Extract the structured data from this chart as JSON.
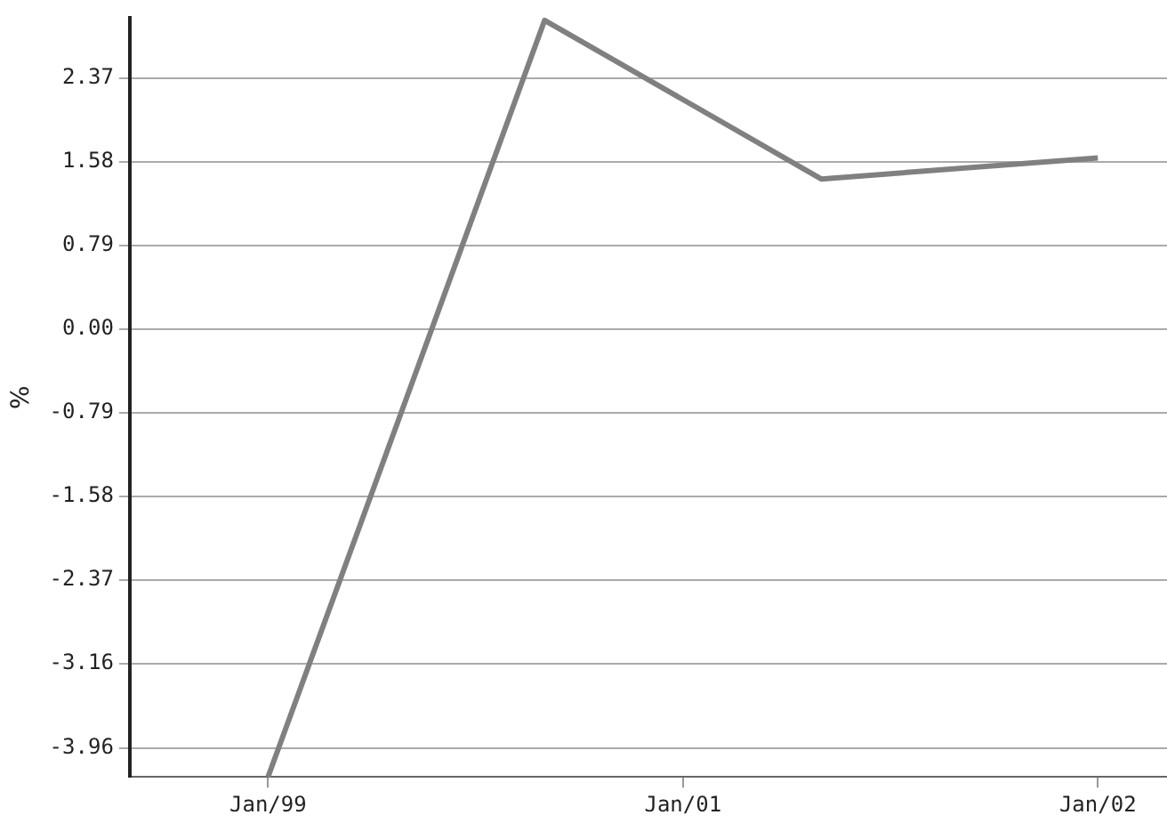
{
  "chart_data": {
    "type": "line",
    "ylabel": "%",
    "categories": [
      null,
      null,
      "Jan/99",
      null,
      null,
      null,
      null,
      null,
      "Jan/01",
      null,
      null,
      null,
      null,
      null,
      "Jan/02",
      null
    ],
    "series": [
      {
        "color": "#808080",
        "values": [
          null,
          null,
          -4.23,
          null,
          null,
          null,
          2.92,
          null,
          null,
          null,
          1.42,
          null,
          null,
          null,
          1.62,
          null
        ]
      }
    ],
    "ylim": [
      -4.23,
      2.94
    ],
    "yticks": [
      {
        "value": -3.96,
        "label": "-3.96"
      },
      {
        "value": -3.16,
        "label": "-3.16"
      },
      {
        "value": -2.37,
        "label": "-2.37"
      },
      {
        "value": -1.58,
        "label": "-1.58"
      },
      {
        "value": -0.79,
        "label": "-0.79"
      },
      {
        "value": 0,
        "label": "0.00"
      },
      {
        "value": 0.79,
        "label": "0.79"
      },
      {
        "value": 1.58,
        "label": "1.58"
      },
      {
        "value": 2.37,
        "label": "2.37"
      }
    ],
    "grid": "y",
    "legend": false,
    "marker": "none",
    "line_style": "solid"
  }
}
